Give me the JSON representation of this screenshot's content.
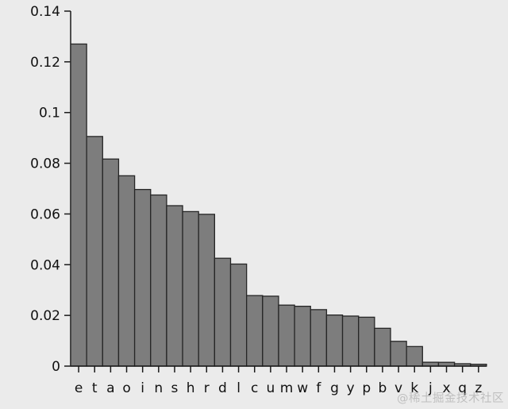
{
  "watermark": {
    "text": "@稀土掘金技术社区"
  },
  "colors": {
    "background": "#ebebeb",
    "bar_fill": "#7d7d7d",
    "bar_stroke": "#262626",
    "axis": "#1a1a1a",
    "tick_text": "#111111",
    "watermark_text": "#bfbfbf"
  },
  "chart_data": {
    "type": "bar",
    "title": "",
    "xlabel": "",
    "ylabel": "",
    "categories": [
      "e",
      "t",
      "a",
      "o",
      "i",
      "n",
      "s",
      "h",
      "r",
      "d",
      "l",
      "c",
      "u",
      "m",
      "w",
      "f",
      "g",
      "y",
      "p",
      "b",
      "v",
      "k",
      "j",
      "x",
      "q",
      "z"
    ],
    "values": [
      0.12702,
      0.09056,
      0.08167,
      0.07507,
      0.06966,
      0.06749,
      0.06327,
      0.06094,
      0.05987,
      0.04253,
      0.04025,
      0.02782,
      0.02758,
      0.02406,
      0.0236,
      0.02228,
      0.02015,
      0.01974,
      0.01929,
      0.01492,
      0.00978,
      0.00772,
      0.00153,
      0.0015,
      0.00095,
      0.00074
    ],
    "ylim": [
      0,
      0.14
    ],
    "yticks": [
      {
        "value": 0,
        "label": "0"
      },
      {
        "value": 0.02,
        "label": "0.02"
      },
      {
        "value": 0.04,
        "label": "0.04"
      },
      {
        "value": 0.06,
        "label": "0.06"
      },
      {
        "value": 0.08,
        "label": "0.08"
      },
      {
        "value": 0.1,
        "label": "0.1"
      },
      {
        "value": 0.12,
        "label": "0.12"
      },
      {
        "value": 0.14,
        "label": "0.14"
      }
    ],
    "grid": false,
    "legend": null
  }
}
